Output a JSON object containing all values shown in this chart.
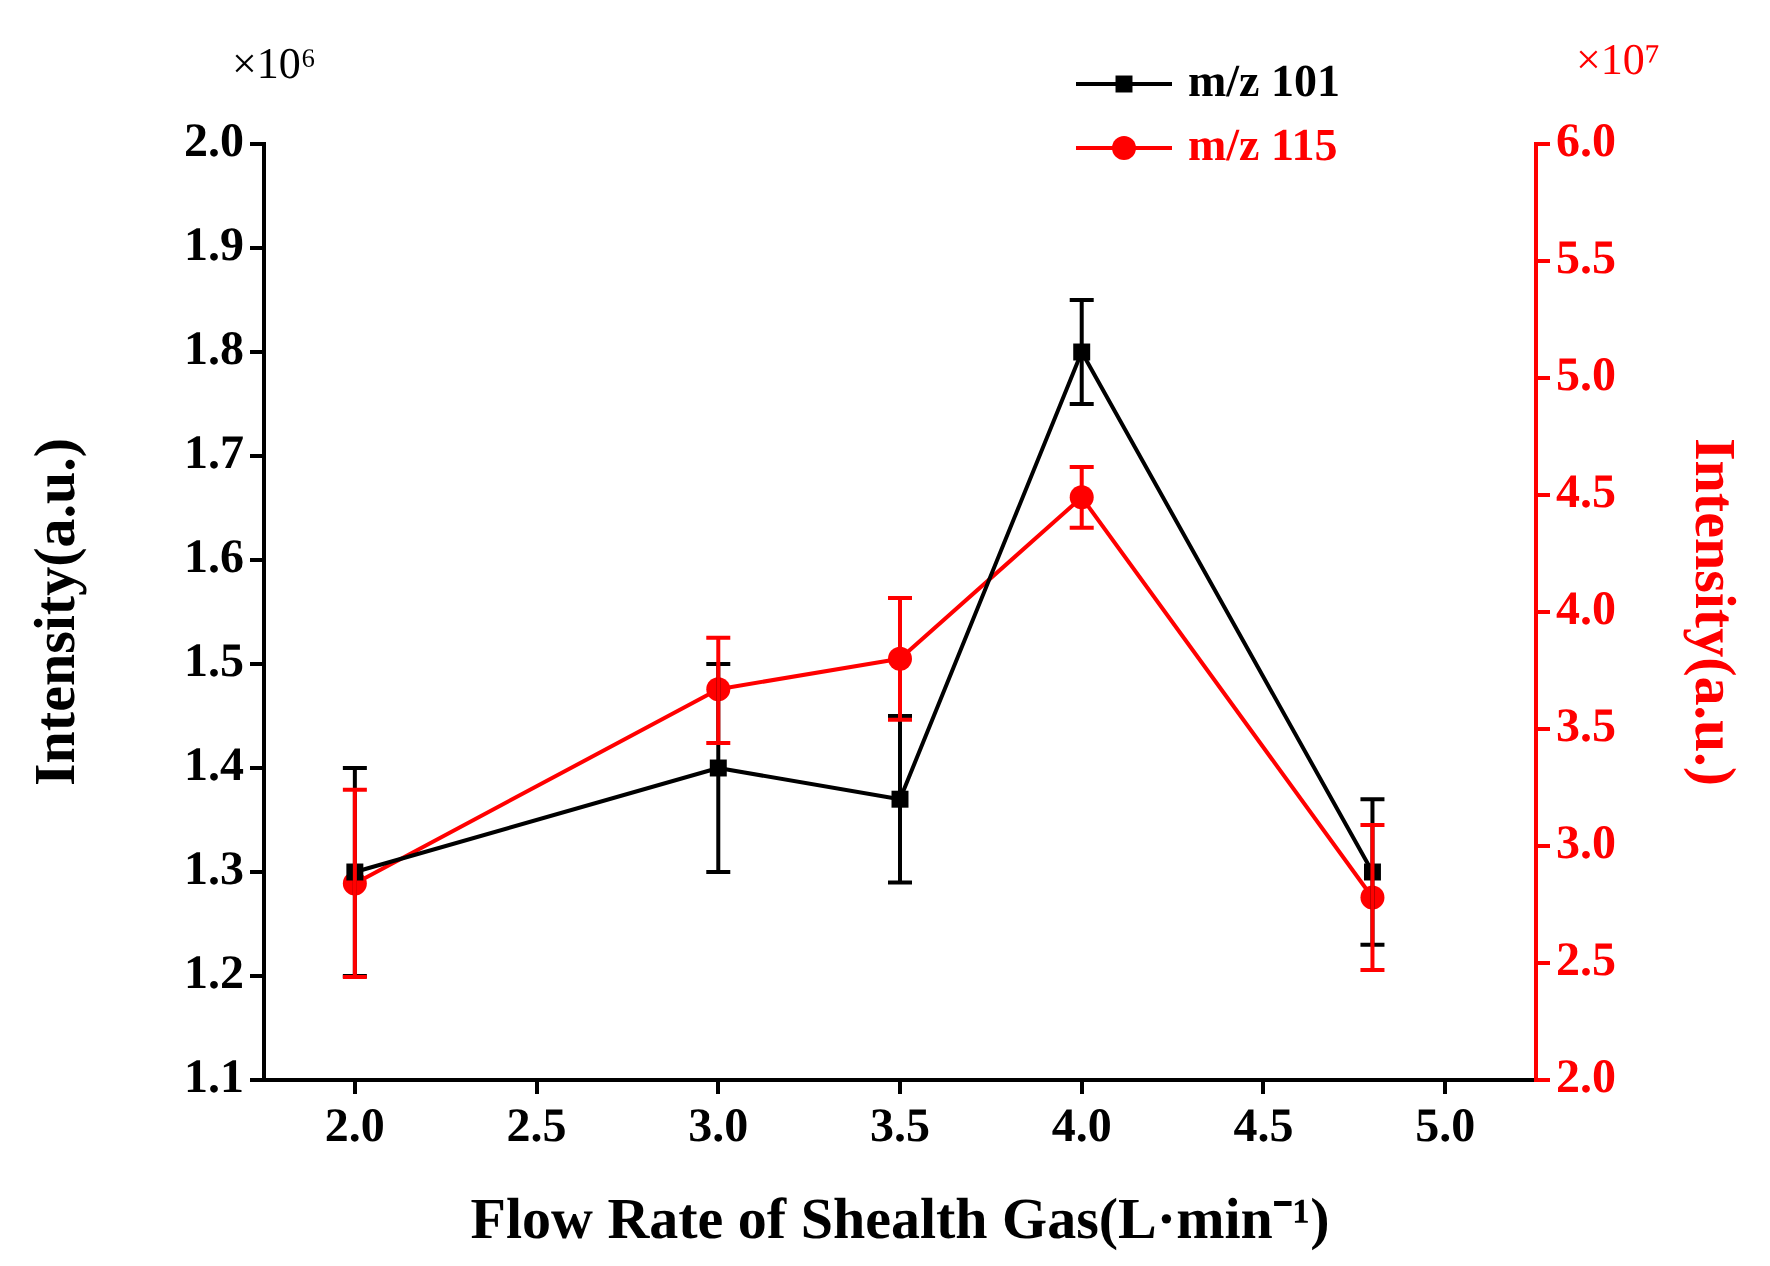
{
  "chart_data": {
    "type": "line",
    "xlabel": "Flow Rate of Shealth Gas(L·min⁻¹)",
    "ylabel": "Intensity(a.u.)",
    "y2label": "Intensity(a.u.)",
    "x": [
      2.0,
      3.0,
      3.5,
      4.0,
      4.8
    ],
    "series": [
      {
        "name": "m/z 101",
        "color": "#000000",
        "marker": "square",
        "values": [
          1.3,
          1.4,
          1.37,
          1.8,
          1.3
        ],
        "errors": [
          0.1,
          0.1,
          [
            1.29,
            1.45
          ],
          [
            1.75,
            1.85
          ],
          [
            1.23,
            1.37
          ]
        ]
      },
      {
        "name": "m/z 115",
        "color": "#ff0000",
        "marker": "circle",
        "axis": "y2",
        "values": [
          2.84,
          3.67,
          3.8,
          4.49,
          2.78
        ],
        "errors": [
          [
            2.44,
            3.24
          ],
          [
            3.44,
            3.89
          ],
          [
            3.54,
            4.06
          ],
          [
            4.36,
            4.62
          ],
          [
            2.47,
            3.09
          ]
        ]
      }
    ],
    "xlim": [
      1.75,
      5.25
    ],
    "xticks": [
      {
        "value": 2,
        "label": "2.0"
      },
      2.5,
      {
        "value": 3,
        "label": "3.0"
      },
      3.5,
      {
        "value": 4,
        "label": "4.0"
      },
      4.5,
      {
        "value": 5,
        "label": "5.0"
      }
    ],
    "ylim": [
      1.1,
      2.0
    ],
    "yticks": [
      1.1,
      1.2,
      1.3,
      1.4,
      1.5,
      1.6,
      1.7,
      1.8,
      1.9,
      {
        "value": 2,
        "label": "2.0"
      }
    ],
    "y2lim": [
      2.0,
      6.0
    ],
    "y2ticks": [
      {
        "value": 2,
        "label": "2.0"
      },
      2.5,
      {
        "value": 3,
        "label": "3.0"
      },
      3.5,
      {
        "value": 4,
        "label": "4.0"
      },
      4.5,
      {
        "value": 5,
        "label": "5.0"
      },
      5.5,
      {
        "value": 6,
        "label": "6.0"
      }
    ],
    "annotations": [
      "×10⁶",
      "×10⁷"
    ],
    "legend": "top right",
    "grid": false,
    "line_style": "solid"
  }
}
